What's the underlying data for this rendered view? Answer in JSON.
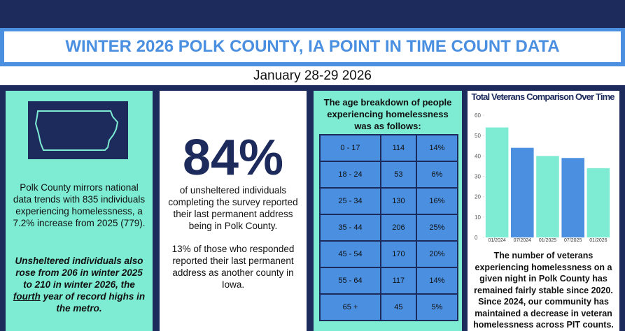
{
  "header": {
    "title": "WINTER 2026 POLK COUNTY, IA POINT IN TIME COUNT DATA",
    "date": "January 28-29 2026"
  },
  "panel_overview": {
    "paragraph_1": "Polk County mirrors national data trends with 835 individuals experiencing homelessness, a 7.2% increase from 2025 (779).",
    "paragraph_2": [
      "Unsheltered individuals also rose from 206 in winter 2025 to 210 in winter 2026, the ",
      "fourth",
      " year of record highs in the metro."
    ]
  },
  "panel_address": {
    "big_number": "84%",
    "paragraph_1": "of unsheltered individuals completing the survey reported their last permanent address being in Polk County.",
    "paragraph_2": "13% of those who responded reported their last permanent address as another county in Iowa."
  },
  "panel_age": {
    "heading": "The age breakdown of people experiencing homelessness was as follows:",
    "table": {
      "rows": [
        [
          "0 - 17",
          "114",
          "14%"
        ],
        [
          "18 - 24",
          "53",
          "6%"
        ],
        [
          "25 - 34",
          "130",
          "16%"
        ],
        [
          "35 - 44",
          "206",
          "25%"
        ],
        [
          "45 - 54",
          "170",
          "20%"
        ],
        [
          "55 - 64",
          "117",
          "14%"
        ],
        [
          "65 +",
          "45",
          "5%"
        ]
      ]
    }
  },
  "chart_data": {
    "type": "bar",
    "title": "Total Veterans Comparison Over Time",
    "categories": [
      "01/2024",
      "07/2024",
      "01/2025",
      "07/2025",
      "01/2026"
    ],
    "values": [
      54,
      44,
      40,
      39,
      34
    ],
    "colors": [
      "#7eecd3",
      "#4a8fe0",
      "#7eecd3",
      "#4a8fe0",
      "#7eecd3"
    ],
    "ylim": [
      0,
      60
    ],
    "yticks": [
      0,
      10,
      20,
      30,
      40,
      50,
      60
    ]
  },
  "panel_veterans": {
    "paragraph": "The number of veterans experiencing homelessness on a given night in Polk County has remained fairly stable since 2020. Since 2024, our community has maintained a decrease in veteran homelessness across PIT counts."
  }
}
